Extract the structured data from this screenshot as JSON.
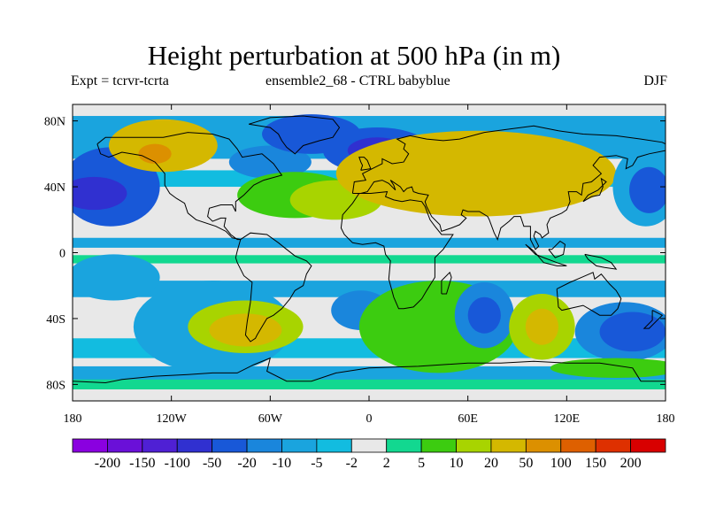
{
  "header": {
    "title": "Height perturbation at 500 hPa (in m)",
    "left": "Expt = tcrvr-tcrta",
    "center": "ensemble2_68 - CTRL babyblue",
    "right": "DJF"
  },
  "chart_data": {
    "type": "heatmap",
    "title": "Height perturbation at 500 hPa (in m)",
    "xlim": [
      -180,
      180
    ],
    "ylim": [
      -90,
      90
    ],
    "x_ticks": [
      {
        "value": -180,
        "label": "180"
      },
      {
        "value": -120,
        "label": "120W"
      },
      {
        "value": -60,
        "label": "60W"
      },
      {
        "value": 0,
        "label": "0"
      },
      {
        "value": 60,
        "label": "60E"
      },
      {
        "value": 120,
        "label": "120E"
      },
      {
        "value": 180,
        "label": "180"
      }
    ],
    "y_ticks": [
      {
        "value": 80,
        "label": "80N"
      },
      {
        "value": 40,
        "label": "40N"
      },
      {
        "value": 0,
        "label": "0"
      },
      {
        "value": -40,
        "label": "40S"
      },
      {
        "value": -80,
        "label": "80S"
      }
    ],
    "colorbar": {
      "levels": [
        "-200",
        "-150",
        "-100",
        "-50",
        "-20",
        "-10",
        "-5",
        "-2",
        "2",
        "5",
        "10",
        "20",
        "50",
        "100",
        "150",
        "200"
      ],
      "colors": [
        "#8a00e0",
        "#6a10d8",
        "#4f20d4",
        "#3030d0",
        "#1858d8",
        "#1a86dc",
        "#1aa4de",
        "#12bce0",
        "#e8e8e8",
        "#12d890",
        "#3ccc10",
        "#a8d400",
        "#d4b800",
        "#dc9000",
        "#de6000",
        "#de3000",
        "#d80000"
      ]
    },
    "regions": [
      {
        "level": 4,
        "lon": -157,
        "lat": 40,
        "rx": 30,
        "ry": 24
      },
      {
        "level": 3,
        "lon": -167,
        "lat": 36,
        "rx": 20,
        "ry": 10
      },
      {
        "level": 5,
        "lon": -60,
        "lat": 55,
        "rx": 25,
        "ry": 10
      },
      {
        "level": 4,
        "lon": -35,
        "lat": 72,
        "rx": 30,
        "ry": 12
      },
      {
        "level": 4,
        "lon": 5,
        "lat": 62,
        "rx": 33,
        "ry": 14
      },
      {
        "level": 3,
        "lon": 5,
        "lat": 62,
        "rx": 18,
        "ry": 8
      },
      {
        "level": 12,
        "lon": -125,
        "lat": 65,
        "rx": 33,
        "ry": 16
      },
      {
        "level": 13,
        "lon": -130,
        "lat": 60,
        "rx": 10,
        "ry": 6
      },
      {
        "level": 10,
        "lon": -45,
        "lat": 35,
        "rx": 35,
        "ry": 14
      },
      {
        "level": 11,
        "lon": -20,
        "lat": 32,
        "rx": 28,
        "ry": 12
      },
      {
        "level": 12,
        "lon": 65,
        "lat": 48,
        "rx": 85,
        "ry": 26
      },
      {
        "level": 6,
        "lon": 168,
        "lat": 40,
        "rx": 20,
        "ry": 24
      },
      {
        "level": 4,
        "lon": 170,
        "lat": 38,
        "rx": 12,
        "ry": 14
      },
      {
        "level": 6,
        "lon": -155,
        "lat": -15,
        "rx": 28,
        "ry": 14
      },
      {
        "level": 6,
        "lon": -95,
        "lat": -45,
        "rx": 48,
        "ry": 28
      },
      {
        "level": 11,
        "lon": -75,
        "lat": -45,
        "rx": 35,
        "ry": 16
      },
      {
        "level": 12,
        "lon": -75,
        "lat": -47,
        "rx": 22,
        "ry": 10
      },
      {
        "level": 5,
        "lon": -5,
        "lat": -35,
        "rx": 18,
        "ry": 12
      },
      {
        "level": 10,
        "lon": 42,
        "lat": -45,
        "rx": 48,
        "ry": 28
      },
      {
        "level": 5,
        "lon": 70,
        "lat": -38,
        "rx": 18,
        "ry": 20
      },
      {
        "level": 4,
        "lon": 70,
        "lat": -38,
        "rx": 10,
        "ry": 11
      },
      {
        "level": 11,
        "lon": 105,
        "lat": -45,
        "rx": 20,
        "ry": 20
      },
      {
        "level": 12,
        "lon": 105,
        "lat": -45,
        "rx": 10,
        "ry": 11
      },
      {
        "level": 5,
        "lon": 155,
        "lat": -48,
        "rx": 30,
        "ry": 18
      },
      {
        "level": 4,
        "lon": 160,
        "lat": -48,
        "rx": 20,
        "ry": 12
      },
      {
        "level": 10,
        "lon": 150,
        "lat": -70,
        "rx": 40,
        "ry": 6
      }
    ]
  }
}
